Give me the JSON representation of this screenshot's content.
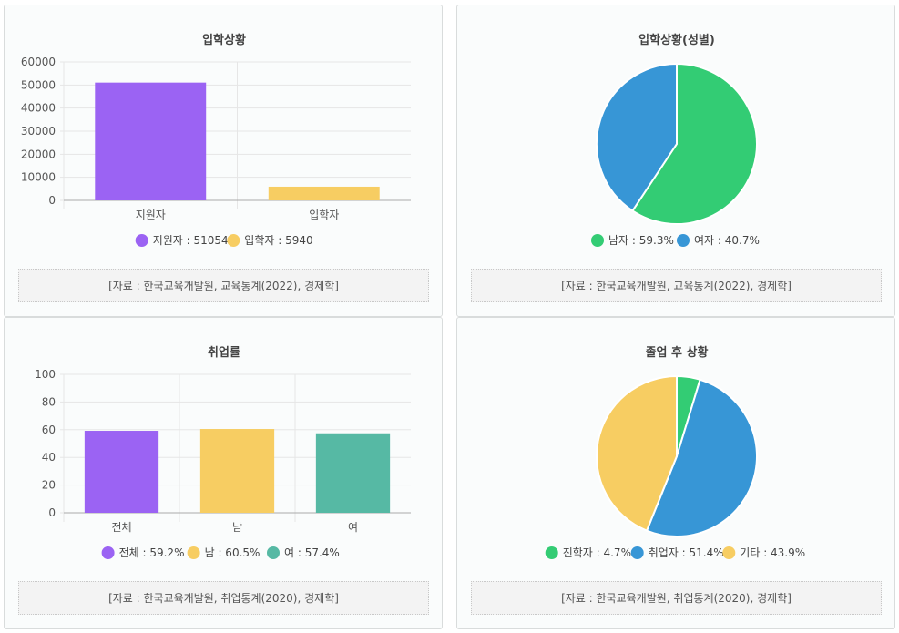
{
  "cards": [
    {
      "source": "[자료 : 한국교육개발원, 교육통계(2022), 경제학]",
      "chart": {
        "type": "bar",
        "title": "입학상황",
        "categories": [
          "지원자",
          "입학자"
        ],
        "values": [
          51054,
          5940
        ],
        "colors": [
          "#9b63f3",
          "#f7cd62"
        ],
        "ylim": [
          0,
          60000
        ],
        "yticks": [
          0,
          10000,
          20000,
          30000,
          40000,
          50000,
          60000
        ],
        "legend": [
          "지원자 : 51054",
          "입학자 : 5940"
        ]
      }
    },
    {
      "source": "[자료 : 한국교육개발원, 교육통계(2022), 경제학]",
      "chart": {
        "type": "pie",
        "title": "입학상황(성별)",
        "labels": [
          "남자",
          "여자"
        ],
        "values": [
          59.3,
          40.7
        ],
        "colors": [
          "#33cc74",
          "#3796d6"
        ],
        "legend": [
          "남자 : 59.3%",
          "여자 : 40.7%"
        ]
      }
    },
    {
      "source": "[자료 : 한국교육개발원, 취업통계(2020), 경제학]",
      "chart": {
        "type": "bar",
        "title": "취업률",
        "categories": [
          "전체",
          "남",
          "여"
        ],
        "values": [
          59.2,
          60.5,
          57.4
        ],
        "colors": [
          "#9b63f3",
          "#f7cd62",
          "#56b9a4"
        ],
        "ylim": [
          0,
          100
        ],
        "yticks": [
          0,
          20,
          40,
          60,
          80,
          100
        ],
        "legend": [
          "전체 : 59.2%",
          "남 : 60.5%",
          "여 : 57.4%"
        ]
      }
    },
    {
      "source": "[자료 : 한국교육개발원, 취업통계(2020), 경제학]",
      "chart": {
        "type": "pie",
        "title": "졸업 후 상황",
        "labels": [
          "진학자",
          "취업자",
          "기타"
        ],
        "values": [
          4.7,
          51.4,
          43.9
        ],
        "colors": [
          "#33cc74",
          "#3796d6",
          "#f7cd62"
        ],
        "legend": [
          "진학자 : 4.7%",
          "취업자 : 51.4%",
          "기타 : 43.9%"
        ]
      }
    }
  ],
  "chart_data": [
    {
      "type": "bar",
      "title": "입학상황",
      "categories": [
        "지원자",
        "입학자"
      ],
      "values": [
        51054,
        5940
      ],
      "ylim": [
        0,
        60000
      ]
    },
    {
      "type": "pie",
      "title": "입학상황(성별)",
      "labels": [
        "남자",
        "여자"
      ],
      "values": [
        59.3,
        40.7
      ]
    },
    {
      "type": "bar",
      "title": "취업률",
      "categories": [
        "전체",
        "남",
        "여"
      ],
      "values": [
        59.2,
        60.5,
        57.4
      ],
      "ylim": [
        0,
        100
      ]
    },
    {
      "type": "pie",
      "title": "졸업 후 상황",
      "labels": [
        "진학자",
        "취업자",
        "기타"
      ],
      "values": [
        4.7,
        51.4,
        43.9
      ]
    }
  ]
}
